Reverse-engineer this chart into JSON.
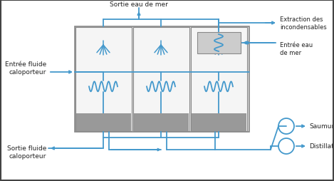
{
  "fig_width": 4.69,
  "fig_height": 2.55,
  "dpi": 100,
  "bg_color": "#ffffff",
  "cyan": "#4499cc",
  "gray_fill": "#999999",
  "light_gray": "#cccccc",
  "dark_gray": "#888888",
  "box_bg": "#f5f5f5",
  "box_bg2": "#e0e0e0",
  "labels": {
    "sortie_eau": "Sortie eau de mer",
    "extraction": "Extraction des\nincondensables",
    "entree_eau": "Entrée eau\nde mer",
    "entree_fluide": "Entrée fluide\ncaloporteur",
    "sortie_fluide": "Sortie fluide\ncaloporteur",
    "saumure": "Saumure",
    "distillat": "Distillat"
  }
}
